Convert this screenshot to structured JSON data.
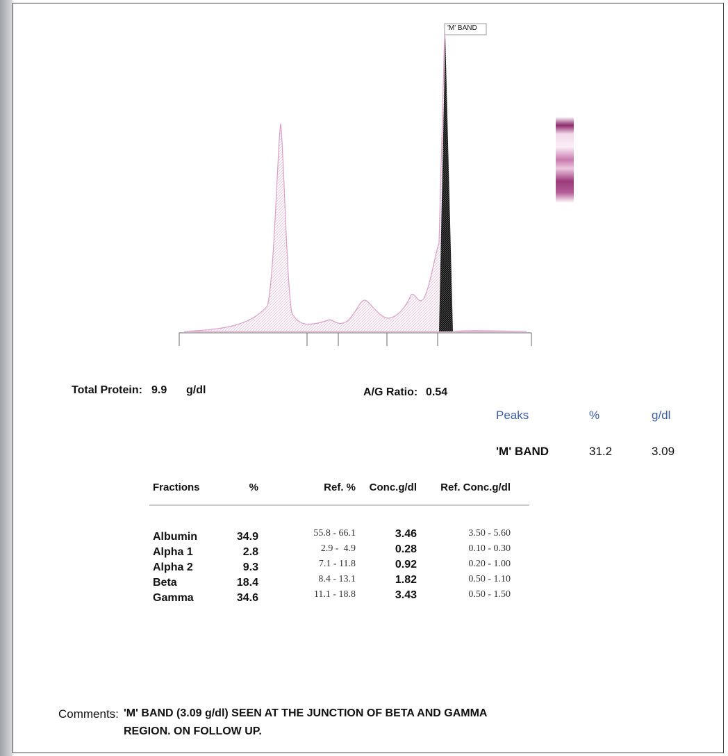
{
  "electropherogram": {
    "peak_label": "'M' BAND"
  },
  "summary": {
    "total_protein_label": "Total Protein:",
    "total_protein_value": "9.9",
    "total_protein_unit": "g/dl",
    "ag_ratio_label": "A/G Ratio:",
    "ag_ratio_value": "0.54"
  },
  "peaks_table": {
    "header": [
      "Peaks",
      "%",
      "g/dl"
    ],
    "rows": [
      [
        "'M' BAND",
        "31.2",
        "3.09"
      ]
    ]
  },
  "fractions_table": {
    "header": [
      "Fractions",
      "%",
      "Ref. %",
      "Conc.g/dl",
      "Ref. Conc.g/dl"
    ],
    "rows": [
      [
        "Albumin",
        "34.9",
        "55.8 - 66.1",
        "3.46",
        "3.50 - 5.60"
      ],
      [
        "Alpha 1",
        "2.8",
        "2.9 -  4.9",
        "0.28",
        "0.10 - 0.30"
      ],
      [
        "Alpha 2",
        "9.3",
        "7.1 - 11.8",
        "0.92",
        "0.20 - 1.00"
      ],
      [
        "Beta",
        "18.4",
        "8.4 - 13.1",
        "1.82",
        "0.50 - 1.10"
      ],
      [
        "Gamma",
        "34.6",
        "11.1 - 18.8",
        "3.43",
        "0.50 - 1.50"
      ]
    ]
  },
  "comments": {
    "label": "Comments:",
    "lines": [
      "'M' BAND (3.09 g/dl) SEEN AT THE JUNCTION OF BETA AND GAMMA",
      "REGION. ON FOLLOW UP."
    ]
  }
}
